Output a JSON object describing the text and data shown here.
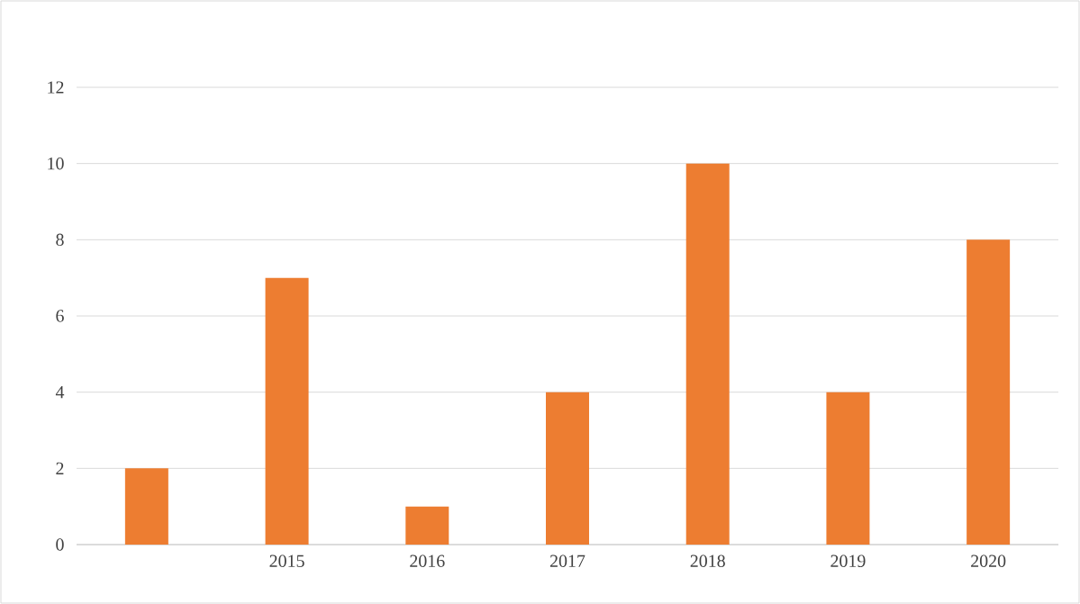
{
  "chart_data": {
    "type": "bar",
    "categories": [
      null,
      "2015",
      "2016",
      "2017",
      "2018",
      "2019",
      "2020"
    ],
    "values": [
      2,
      7,
      1,
      4,
      10,
      4,
      8
    ],
    "color": "#ed7d31",
    "ylim": [
      0,
      12
    ],
    "yticks": [
      0,
      2,
      4,
      6,
      8,
      10,
      12
    ],
    "grid": "y"
  }
}
